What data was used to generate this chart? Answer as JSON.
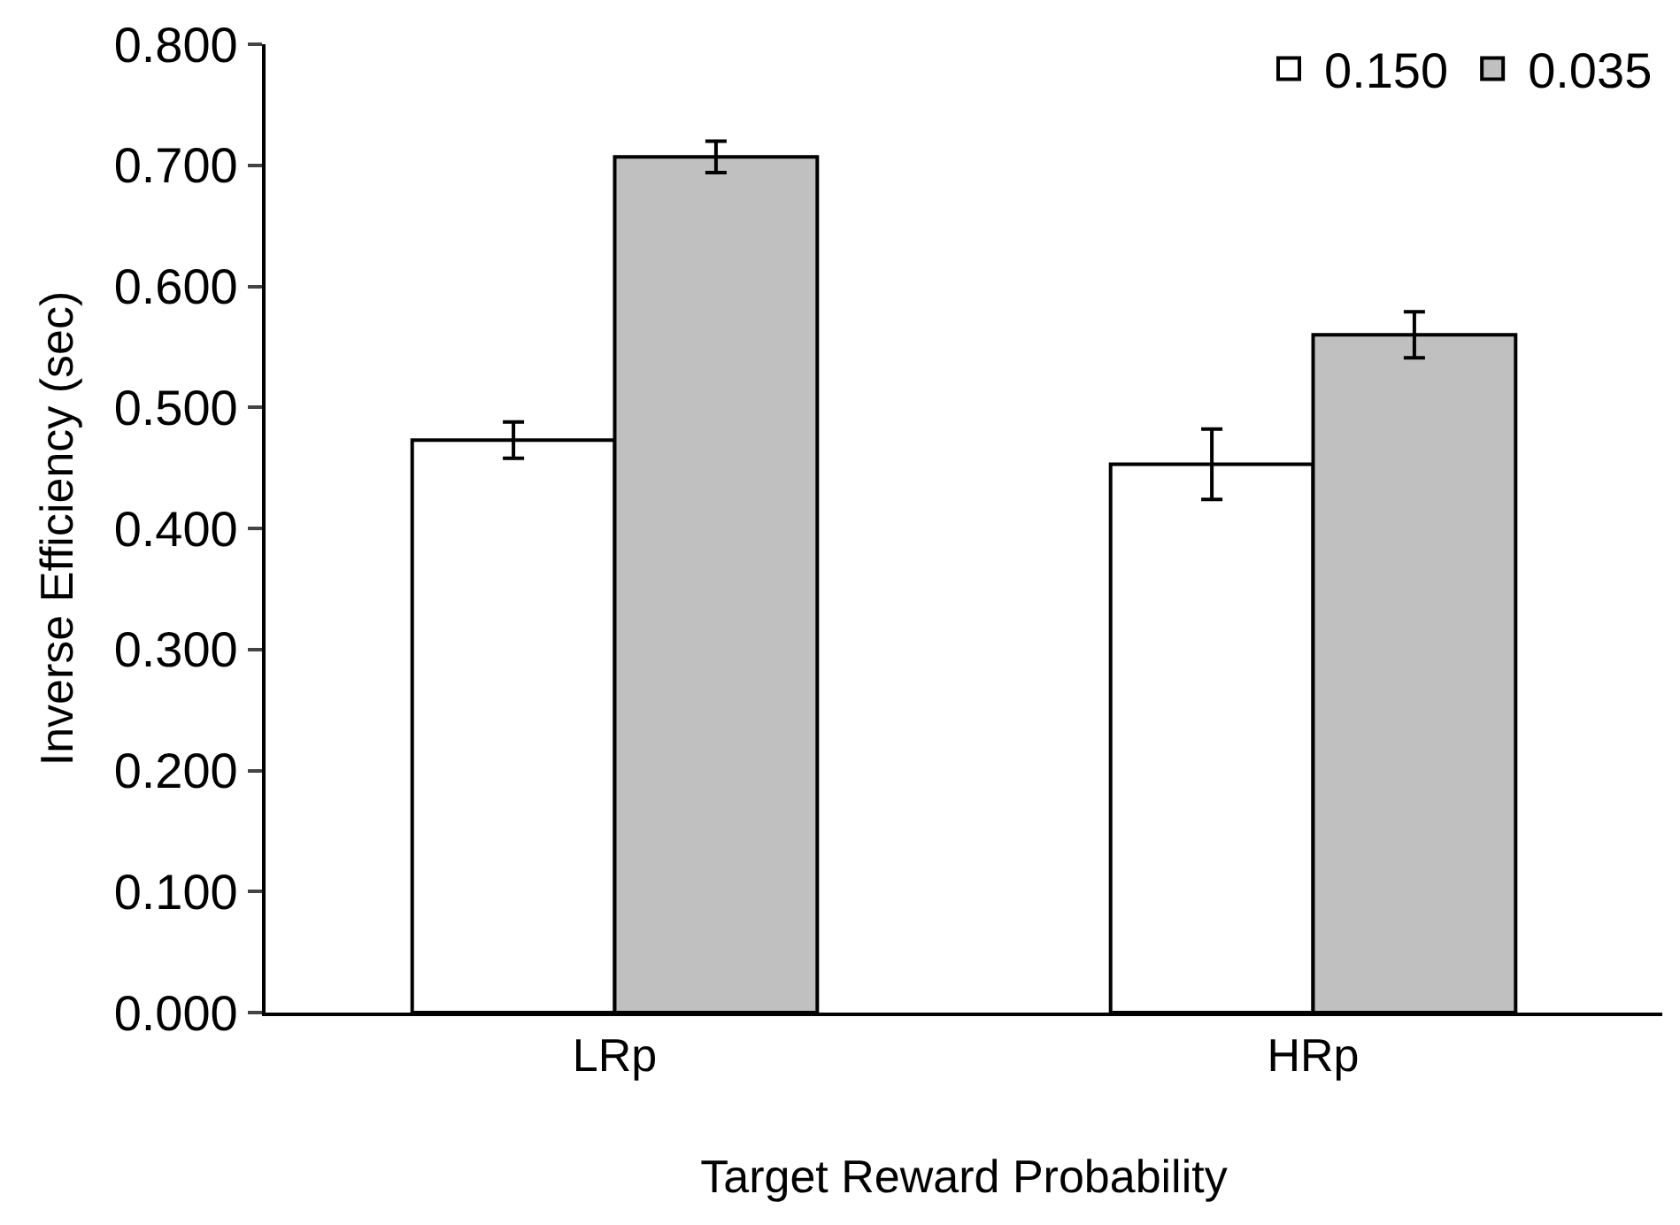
{
  "chart_data": {
    "type": "bar",
    "xlabel": "Target Reward Probability",
    "ylabel": "Inverse Efficiency (sec)",
    "categories": [
      "LRp",
      "HRp"
    ],
    "series": [
      {
        "name": "0.150",
        "color": "#ffffff",
        "values": [
          0.473,
          0.453
        ],
        "errors": [
          0.015,
          0.029
        ]
      },
      {
        "name": "0.035",
        "color": "#c0c0c0",
        "values": [
          0.707,
          0.56
        ],
        "errors": [
          0.013,
          0.019
        ]
      }
    ],
    "ylim": [
      0,
      0.8
    ],
    "yticks": [
      {
        "value": 0,
        "label": "0.000"
      },
      {
        "value": 0.1,
        "label": "0.100"
      },
      {
        "value": 0.2,
        "label": "0.200"
      },
      {
        "value": 0.3,
        "label": "0.300"
      },
      {
        "value": 0.4,
        "label": "0.400"
      },
      {
        "value": 0.5,
        "label": "0.500"
      },
      {
        "value": 0.6,
        "label": "0.600"
      },
      {
        "value": 0.7,
        "label": "0.700"
      },
      {
        "value": 0.8,
        "label": "0.800"
      }
    ],
    "grid": false,
    "legend": "top right"
  }
}
